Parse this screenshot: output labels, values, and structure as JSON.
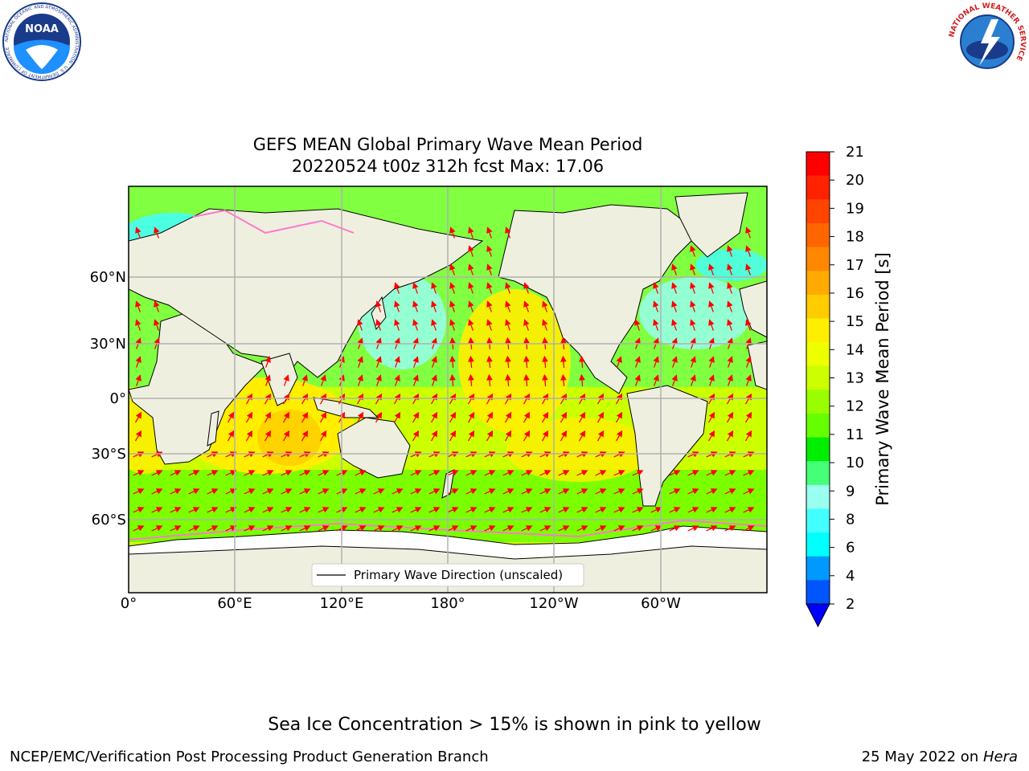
{
  "title": {
    "line1": "GEFS MEAN Global Primary Wave Mean Period",
    "line2": "20220524 t00z 312h fcst   Max: 17.06"
  },
  "axes": {
    "lat_ticks": [
      "60°N",
      "30°N",
      "0°",
      "30°S",
      "60°S"
    ],
    "lon_ticks": [
      "0°",
      "60°E",
      "120°E",
      "180°",
      "120°W",
      "60°W"
    ]
  },
  "legend": {
    "label": "Primary Wave Direction (unscaled)"
  },
  "colorbar": {
    "label": "Primary Wave Mean Period [s]",
    "ticks": [
      "21",
      "20",
      "19",
      "18",
      "17",
      "16",
      "15",
      "14",
      "13",
      "12",
      "11",
      "10",
      "9",
      "8",
      "6",
      "4",
      "2"
    ],
    "colors": [
      "#ff0000",
      "#ff2200",
      "#ff4400",
      "#ff6600",
      "#ff8800",
      "#ffaa00",
      "#ffcc00",
      "#ffee00",
      "#eeff00",
      "#ccff00",
      "#99ff00",
      "#66ff00",
      "#00ee00",
      "#44ff77",
      "#99ffee",
      "#44ffff",
      "#00ffff",
      "#0099ff",
      "#0055ff"
    ],
    "extend_color": "#0000ff"
  },
  "colors": {
    "land": "#efefe0",
    "arrow": "#ff0000",
    "grid": "#b0b0b0"
  },
  "ice_note": "Sea Ice Concentration > 15% is shown in pink to yellow",
  "footer": {
    "left": "NCEP/EMC/Verification Post Processing Product Generation Branch",
    "date": "25 May 2022 on ",
    "host": "Hera"
  },
  "logos": {
    "noaa_text": "NOAA",
    "noaa_ring": "NATIONAL OCEANIC AND ATMOSPHERIC ADMINISTRATION · U.S. DEPARTMENT OF COMMERCE",
    "nws_ring": "NATIONAL WEATHER SERVICE"
  }
}
